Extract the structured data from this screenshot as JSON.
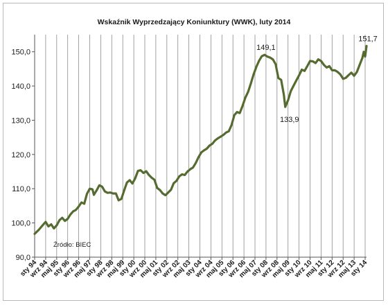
{
  "chart_data": {
    "type": "line",
    "title": "Wskaźnik Wyprzedzający Koniunktury (WWK), luty 2014",
    "xlabel": "",
    "ylabel": "",
    "ylim": [
      90,
      155
    ],
    "yticks": [
      "90,0",
      "100,0",
      "110,0",
      "120,0",
      "130,0",
      "140,0",
      "150,0"
    ],
    "ytick_values": [
      90,
      100,
      110,
      120,
      130,
      140,
      150
    ],
    "x_range": [
      "1994-01",
      "2014-02"
    ],
    "xtick_labels": [
      "sty 94",
      "wrz 94",
      "maj 95",
      "sty 96",
      "wrz 96",
      "maj 97",
      "sty 98",
      "wrz 98",
      "maj 99",
      "sty 00",
      "wrz 00",
      "maj 01",
      "sty 02",
      "wrz 02",
      "maj 03",
      "sty 04",
      "wrz 04",
      "maj 05",
      "sty 06",
      "wrz 06",
      "maj 07",
      "sty 08",
      "wrz 08",
      "maj 09",
      "sty 10",
      "wrz 10",
      "maj 11",
      "sty 12",
      "wrz 12",
      "maj 13",
      "sty 14"
    ],
    "xtick_dates": [
      "1994-01",
      "1994-09",
      "1995-05",
      "1996-01",
      "1996-09",
      "1997-05",
      "1998-01",
      "1998-09",
      "1999-05",
      "2000-01",
      "2000-09",
      "2001-05",
      "2002-01",
      "2002-09",
      "2003-05",
      "2004-01",
      "2004-09",
      "2005-05",
      "2006-01",
      "2006-09",
      "2007-05",
      "2008-01",
      "2008-09",
      "2009-05",
      "2010-01",
      "2010-09",
      "2011-05",
      "2012-01",
      "2012-09",
      "2013-05",
      "2014-01"
    ],
    "vertical_grid": true,
    "horizontal_grid": false,
    "series": [
      {
        "name": "",
        "color": "#556b2f",
        "points": [
          [
            "1994-01",
            96.8
          ],
          [
            "1994-04",
            98.0
          ],
          [
            "1994-07",
            99.4
          ],
          [
            "1994-09",
            100.3
          ],
          [
            "1994-11",
            99.0
          ],
          [
            "1995-01",
            99.6
          ],
          [
            "1995-03",
            98.4
          ],
          [
            "1995-05",
            99.3
          ],
          [
            "1995-07",
            100.8
          ],
          [
            "1995-09",
            101.5
          ],
          [
            "1995-11",
            100.6
          ],
          [
            "1996-01",
            101.2
          ],
          [
            "1996-03",
            102.5
          ],
          [
            "1996-05",
            103.4
          ],
          [
            "1996-07",
            103.8
          ],
          [
            "1996-09",
            104.8
          ],
          [
            "1996-11",
            106.0
          ],
          [
            "1997-01",
            105.6
          ],
          [
            "1997-03",
            108.5
          ],
          [
            "1997-05",
            110.0
          ],
          [
            "1997-07",
            109.8
          ],
          [
            "1997-08",
            108.2
          ],
          [
            "1997-10",
            109.5
          ],
          [
            "1997-12",
            111.0
          ],
          [
            "1998-02",
            110.6
          ],
          [
            "1998-04",
            109.2
          ],
          [
            "1998-06",
            108.8
          ],
          [
            "1998-08",
            108.9
          ],
          [
            "1998-10",
            108.6
          ],
          [
            "1998-12",
            108.6
          ],
          [
            "1999-02",
            106.6
          ],
          [
            "1999-04",
            107.0
          ],
          [
            "1999-06",
            109.5
          ],
          [
            "1999-08",
            111.8
          ],
          [
            "1999-10",
            112.5
          ],
          [
            "1999-12",
            111.5
          ],
          [
            "2000-02",
            113.0
          ],
          [
            "2000-04",
            115.2
          ],
          [
            "2000-06",
            115.4
          ],
          [
            "2000-08",
            114.6
          ],
          [
            "2000-10",
            115.1
          ],
          [
            "2000-12",
            114.0
          ],
          [
            "2001-02",
            113.2
          ],
          [
            "2001-04",
            112.6
          ],
          [
            "2001-06",
            110.2
          ],
          [
            "2001-08",
            109.6
          ],
          [
            "2001-10",
            108.6
          ],
          [
            "2001-12",
            108.1
          ],
          [
            "2002-02",
            108.9
          ],
          [
            "2002-04",
            109.7
          ],
          [
            "2002-06",
            111.6
          ],
          [
            "2002-08",
            112.3
          ],
          [
            "2002-10",
            113.6
          ],
          [
            "2002-12",
            114.2
          ],
          [
            "2003-02",
            114.0
          ],
          [
            "2003-04",
            115.0
          ],
          [
            "2003-06",
            115.7
          ],
          [
            "2003-08",
            116.2
          ],
          [
            "2003-10",
            117.5
          ],
          [
            "2003-12",
            119.2
          ],
          [
            "2004-02",
            120.6
          ],
          [
            "2004-04",
            121.2
          ],
          [
            "2004-06",
            121.7
          ],
          [
            "2004-08",
            122.6
          ],
          [
            "2004-10",
            123.1
          ],
          [
            "2004-12",
            124.1
          ],
          [
            "2005-02",
            124.7
          ],
          [
            "2005-04",
            125.2
          ],
          [
            "2005-06",
            125.7
          ],
          [
            "2005-08",
            126.4
          ],
          [
            "2005-10",
            126.8
          ],
          [
            "2005-12",
            128.6
          ],
          [
            "2006-02",
            131.5
          ],
          [
            "2006-04",
            132.4
          ],
          [
            "2006-06",
            132.1
          ],
          [
            "2006-08",
            134.2
          ],
          [
            "2006-10",
            136.6
          ],
          [
            "2006-12",
            138.3
          ],
          [
            "2007-02",
            140.7
          ],
          [
            "2007-04",
            143.4
          ],
          [
            "2007-06",
            145.6
          ],
          [
            "2007-08",
            147.4
          ],
          [
            "2007-10",
            148.7
          ],
          [
            "2007-12",
            149.1
          ],
          [
            "2008-02",
            148.6
          ],
          [
            "2008-04",
            148.3
          ],
          [
            "2008-06",
            147.8
          ],
          [
            "2008-08",
            146.4
          ],
          [
            "2008-10",
            142.3
          ],
          [
            "2008-12",
            141.8
          ],
          [
            "2009-02",
            137.4
          ],
          [
            "2009-03",
            133.9
          ],
          [
            "2009-05",
            135.8
          ],
          [
            "2009-07",
            138.5
          ],
          [
            "2009-09",
            140.1
          ],
          [
            "2009-11",
            141.6
          ],
          [
            "2010-01",
            143.1
          ],
          [
            "2010-03",
            144.8
          ],
          [
            "2010-05",
            144.4
          ],
          [
            "2010-07",
            145.8
          ],
          [
            "2010-09",
            147.3
          ],
          [
            "2010-11",
            147.2
          ],
          [
            "2011-01",
            146.7
          ],
          [
            "2011-03",
            147.8
          ],
          [
            "2011-05",
            147.3
          ],
          [
            "2011-07",
            146.2
          ],
          [
            "2011-09",
            145.4
          ],
          [
            "2011-11",
            145.8
          ],
          [
            "2012-01",
            144.6
          ],
          [
            "2012-03",
            144.6
          ],
          [
            "2012-05",
            144.1
          ],
          [
            "2012-07",
            143.4
          ],
          [
            "2012-09",
            142.1
          ],
          [
            "2012-11",
            142.4
          ],
          [
            "2013-01",
            143.2
          ],
          [
            "2013-03",
            143.9
          ],
          [
            "2013-05",
            143.0
          ],
          [
            "2013-07",
            144.1
          ],
          [
            "2013-09",
            146.2
          ],
          [
            "2013-11",
            148.2
          ],
          [
            "2013-12",
            150.0
          ],
          [
            "2014-01",
            148.6
          ],
          [
            "2014-02",
            151.7
          ]
        ]
      }
    ],
    "annotations": [
      {
        "text": "149,1",
        "x": "2007-12",
        "y": 149.1
      },
      {
        "text": "133,9",
        "x": "2009-03",
        "y": 133.9
      },
      {
        "text": "151,7",
        "x": "2014-02",
        "y": 151.7
      }
    ],
    "source_note": "Źródło: BIEC"
  }
}
